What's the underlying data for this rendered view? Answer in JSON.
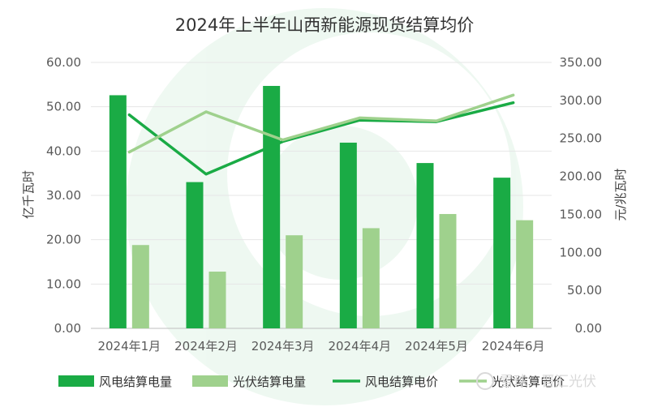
{
  "chart_data": {
    "type": "bar+line",
    "title": "2024年上半年山西新能源现货结算均价",
    "categories": [
      "2024年1月",
      "2024年2月",
      "2024年3月",
      "2024年4月",
      "2024年5月",
      "2024年6月"
    ],
    "ylabel_left": "亿千瓦时",
    "ylabel_right": "元/兆瓦时",
    "ylim_left": [
      0,
      60
    ],
    "ylim_right": [
      0,
      350
    ],
    "yticks_left": [
      "0.00",
      "10.00",
      "20.00",
      "30.00",
      "40.00",
      "50.00",
      "60.00"
    ],
    "yticks_right": [
      "0.00",
      "50.00",
      "100.00",
      "150.00",
      "200.00",
      "250.00",
      "300.00",
      "350.00"
    ],
    "grid": true,
    "legend_position": "bottom",
    "series": [
      {
        "name": "风电结算电量",
        "kind": "bar",
        "axis": "left",
        "color": "#1aab45",
        "values": [
          52.6,
          33.0,
          54.7,
          41.9,
          37.3,
          34.0
        ]
      },
      {
        "name": "光伏结算电量",
        "kind": "bar",
        "axis": "left",
        "color": "#9fd18d",
        "values": [
          18.8,
          12.8,
          21.0,
          22.6,
          25.8,
          24.4
        ]
      },
      {
        "name": "风电结算电价",
        "kind": "line",
        "axis": "right",
        "color": "#1aab45",
        "values": [
          281,
          203,
          246,
          274,
          272,
          297
        ]
      },
      {
        "name": "光伏结算电价",
        "kind": "line",
        "axis": "right",
        "color": "#9fd18d",
        "values": [
          232,
          285,
          248,
          277,
          273,
          307
        ]
      }
    ]
  },
  "watermark": {
    "text": "雪球：晋汇光伏"
  }
}
